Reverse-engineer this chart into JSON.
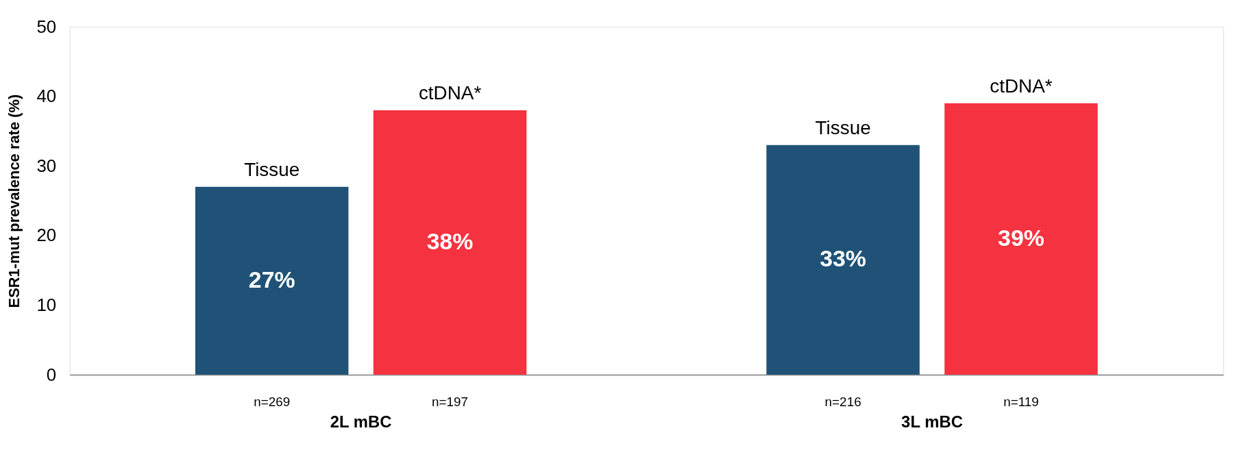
{
  "chart_data": {
    "type": "bar",
    "ylabel": "ESR1-mut prevalence rate (%)",
    "categories": [
      "2L mBC",
      "3L mBC"
    ],
    "series": [
      {
        "name": "Tissue",
        "color": "#1f5276",
        "values": [
          27,
          33
        ],
        "value_labels": [
          "27%",
          "33%"
        ]
      },
      {
        "name": "ctDNA*",
        "color": "#f5323f",
        "values": [
          38,
          39
        ],
        "value_labels": [
          "38%",
          "39%"
        ]
      }
    ],
    "annotations": [
      "n=269",
      "n=197",
      "n=216",
      "n=119"
    ],
    "ylim": [
      0,
      50
    ],
    "yticks": [
      0,
      10,
      20,
      30,
      40,
      50
    ],
    "grid": false,
    "legend": false
  }
}
